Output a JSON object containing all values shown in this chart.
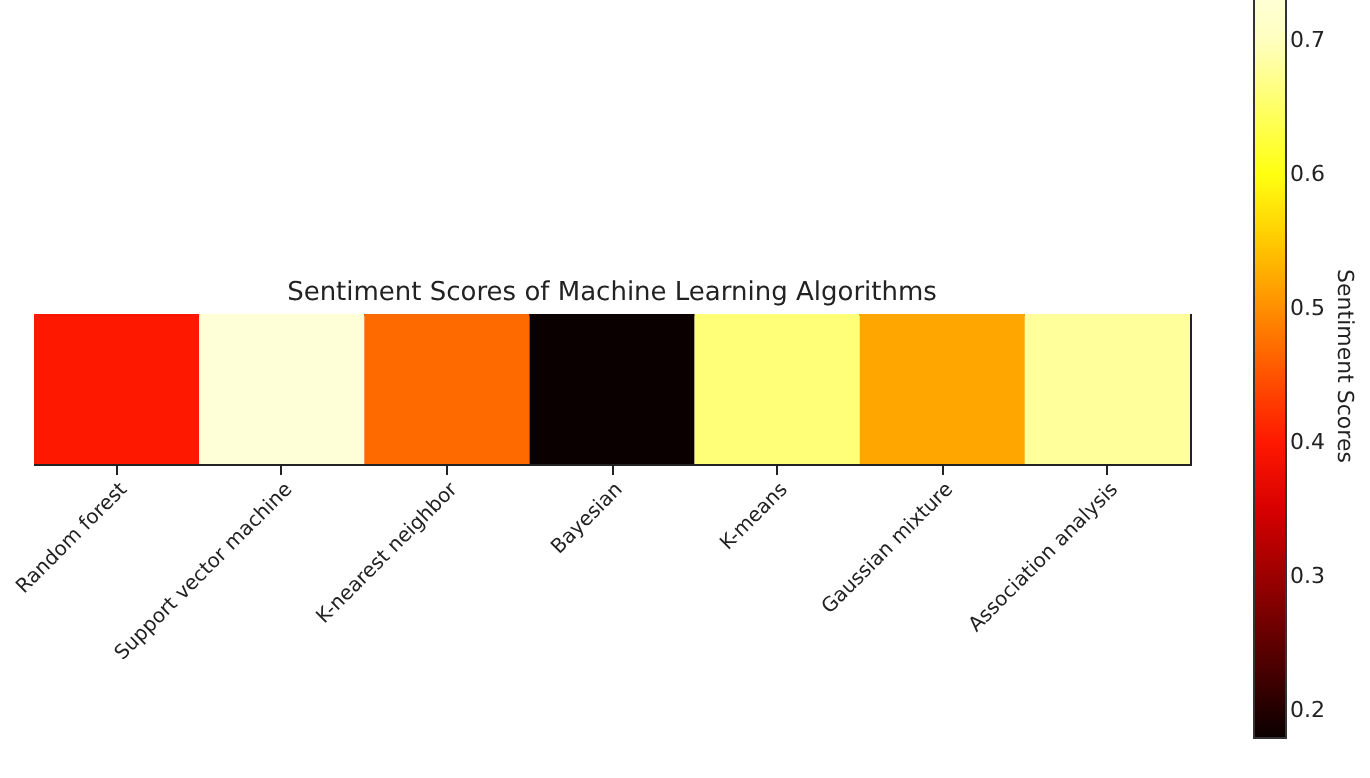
{
  "chart_data": {
    "type": "heatmap",
    "title": "Sentiment Scores of Machine Learning Algorithms",
    "clabel": "Sentiment Scores",
    "categories": [
      "Random forest",
      "Support vector machine",
      "K-nearest neighbor",
      "Bayesian",
      "K-means",
      "Gaussian mixture",
      "Association analysis"
    ],
    "y_categories": [
      null
    ],
    "cells": [
      [
        0.4,
        0.735,
        0.47,
        0.18,
        0.66,
        0.52,
        0.68
      ]
    ],
    "clim": [
      0.18,
      0.735
    ],
    "cticks": [
      0.2,
      0.3,
      0.4,
      0.5,
      0.6,
      0.7
    ]
  }
}
